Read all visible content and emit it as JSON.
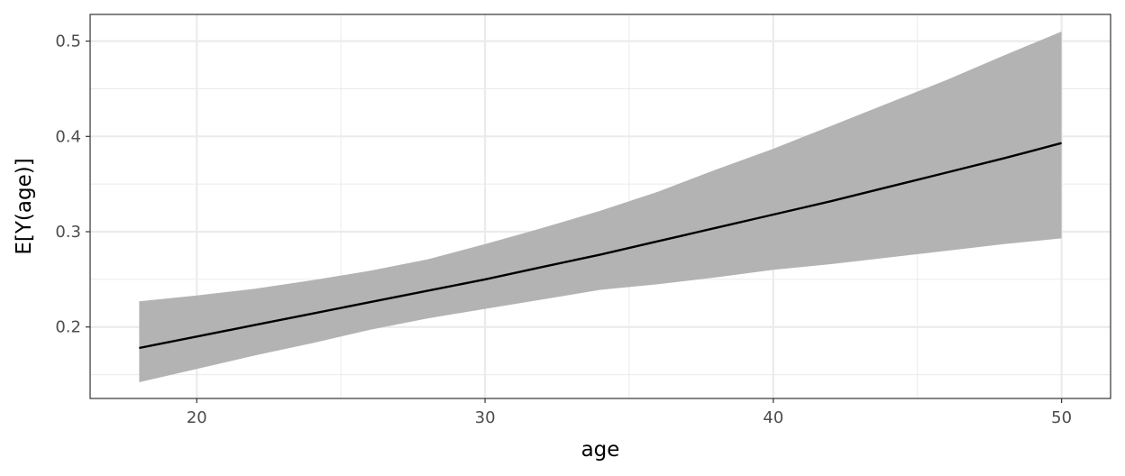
{
  "chart_data": {
    "type": "area",
    "xlabel": "age",
    "ylabel": "E[Y(age)]",
    "xlim": [
      16.3,
      51.7
    ],
    "ylim": [
      0.125,
      0.528
    ],
    "x_ticks_major": [
      20,
      30,
      40,
      50
    ],
    "x_ticks_minor": [
      25,
      35,
      45
    ],
    "y_ticks_major": [
      0.2,
      0.3,
      0.4,
      0.5
    ],
    "y_ticks_minor": [
      0.15,
      0.25,
      0.35,
      0.45
    ],
    "x_tick_labels": [
      "20",
      "30",
      "40",
      "50"
    ],
    "y_tick_labels": [
      "0.2",
      "0.3",
      "0.4",
      "0.5"
    ],
    "grid": true,
    "colors": {
      "line": "#000000",
      "ribbon": "#b3b3b3",
      "grid": "#ebebeb",
      "panel_border": "#333333"
    },
    "series": [
      {
        "kind": "ribbon",
        "x": [
          18,
          20,
          22,
          24,
          26,
          28,
          30,
          32,
          34,
          36,
          38,
          40,
          42,
          44,
          46,
          48,
          50
        ],
        "lower": [
          0.142,
          0.156,
          0.17,
          0.183,
          0.197,
          0.209,
          0.219,
          0.229,
          0.239,
          0.245,
          0.252,
          0.26,
          0.266,
          0.273,
          0.28,
          0.287,
          0.293
        ],
        "upper": [
          0.227,
          0.233,
          0.24,
          0.249,
          0.259,
          0.271,
          0.287,
          0.304,
          0.322,
          0.342,
          0.365,
          0.387,
          0.411,
          0.435,
          0.459,
          0.485,
          0.51
        ]
      },
      {
        "kind": "line",
        "x": [
          18,
          20,
          22,
          24,
          26,
          28,
          30,
          32,
          34,
          36,
          38,
          40,
          42,
          44,
          46,
          48,
          50
        ],
        "y": [
          0.178,
          0.19,
          0.202,
          0.214,
          0.226,
          0.238,
          0.25,
          0.263,
          0.276,
          0.29,
          0.304,
          0.318,
          0.332,
          0.347,
          0.362,
          0.377,
          0.393
        ]
      }
    ]
  }
}
